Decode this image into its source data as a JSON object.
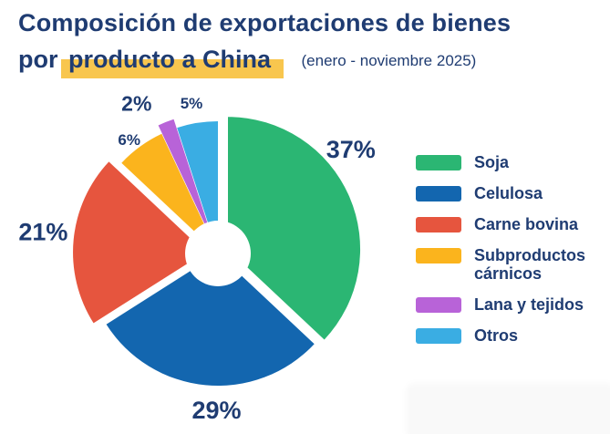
{
  "theme": {
    "text_navy": "#1f3c72",
    "highlight_yellow": "#f8c64e",
    "background": "#ffffff"
  },
  "title": {
    "line1": "Composición de exportaciones de bienes",
    "line2_prefix": "por ",
    "line2_highlight": "producto a China",
    "subtitle": "(enero - noviembre 2025)"
  },
  "chart_data": {
    "type": "pie",
    "donut": true,
    "title": "Composición de exportaciones de bienes por producto a China",
    "subtitle": "(enero - noviembre 2025)",
    "unit": "%",
    "direction": "clockwise",
    "start_angle_deg": 0,
    "legend_position": "right",
    "categories": [
      "Soja",
      "Celulosa",
      "Carne bovina",
      "Subproductos cárnicos",
      "Lana y tejidos",
      "Otros"
    ],
    "values": [
      37,
      29,
      21,
      6,
      2,
      5
    ],
    "labels": [
      "37%",
      "29%",
      "21%",
      "6%",
      "2%",
      "5%"
    ],
    "colors": [
      "#2bb673",
      "#1366af",
      "#e6553e",
      "#fbb41d",
      "#b863d8",
      "#3aade3"
    ],
    "exploded": [
      true,
      false,
      true,
      false,
      true,
      false
    ]
  },
  "legend": {
    "items": [
      {
        "label": "Soja",
        "color": "#2bb673"
      },
      {
        "label": "Celulosa",
        "color": "#1366af"
      },
      {
        "label": "Carne bovina",
        "color": "#e6553e"
      },
      {
        "label": "Subproductos cárnicos",
        "color": "#fbb41d"
      },
      {
        "label": "Lana y tejidos",
        "color": "#b863d8"
      },
      {
        "label": "Otros",
        "color": "#3aade3"
      }
    ]
  }
}
